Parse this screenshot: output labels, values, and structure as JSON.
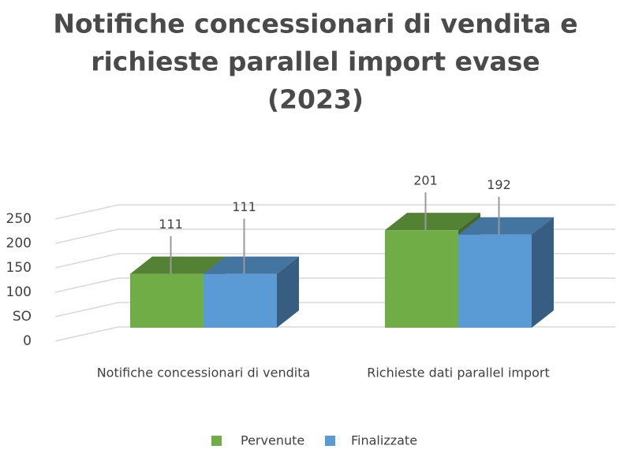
{
  "chart_data": {
    "type": "bar3d",
    "title": [
      "Notifiche concessionari di vendita e",
      "richieste parallel import evase",
      "(2023)"
    ],
    "categories": [
      "Notifiche concessionari di vendita",
      "Richieste dati parallel import"
    ],
    "series": [
      {
        "name": "Pervenute",
        "color": "#70ad47",
        "values": [
          111,
          201
        ]
      },
      {
        "name": "Finalizzate",
        "color": "#5b9bd5",
        "values": [
          111,
          192
        ]
      }
    ],
    "ylim": [
      0,
      250
    ],
    "yticks": [
      0,
      {
        "value": 50,
        "label": "SO"
      },
      100,
      150,
      200,
      250
    ],
    "grid": true,
    "legend": "bottom"
  }
}
